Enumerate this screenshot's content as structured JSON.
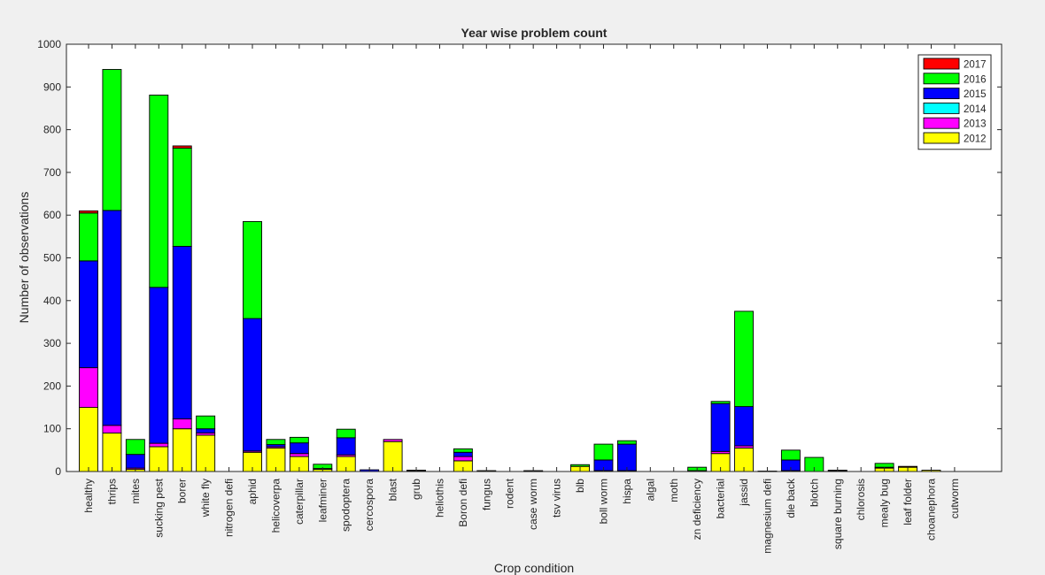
{
  "chart_data": {
    "type": "bar",
    "stacked": true,
    "title": "Year wise problem count",
    "xlabel": "Crop condition",
    "ylabel": "Number of observations",
    "ylim": [
      0,
      1000
    ],
    "yticks": [
      0,
      100,
      200,
      300,
      400,
      500,
      600,
      700,
      800,
      900,
      1000
    ],
    "legend_position": "top-right",
    "categories": [
      "healthy",
      "thrips",
      "mites",
      "sucking pest",
      "borer",
      "white fly",
      "nitrogen defi",
      "aphid",
      "helicoverpa",
      "caterpillar",
      "leafminer",
      "spodoptera",
      "cercospora",
      "blast",
      "grub",
      "heliothis",
      "Boron defi",
      "fungus",
      "rodent",
      "case worm",
      "tsv virus",
      "blb",
      "boll worm",
      "hispa",
      "algal",
      "moth",
      "zn deficiency",
      "bacterial",
      "jassid",
      "magnesium defi",
      "die back",
      "blotch",
      "square burning",
      "chlorosis",
      "mealy bug",
      "leaf folder",
      "choanephora",
      "cutworm"
    ],
    "series": [
      {
        "name": "2012",
        "color": "#ffff00",
        "values": [
          150,
          90,
          5,
          58,
          100,
          85,
          0,
          45,
          55,
          35,
          5,
          35,
          0,
          70,
          2,
          0,
          25,
          2,
          0,
          1,
          0,
          12,
          2,
          2,
          0,
          0,
          2,
          42,
          55,
          1,
          2,
          0,
          2,
          0,
          8,
          10,
          3,
          0
        ]
      },
      {
        "name": "2013",
        "color": "#ff00ff",
        "values": [
          93,
          18,
          3,
          8,
          23,
          5,
          0,
          3,
          3,
          7,
          0,
          4,
          0,
          5,
          0,
          0,
          10,
          0,
          0,
          0,
          0,
          0,
          0,
          0,
          0,
          0,
          0,
          5,
          5,
          0,
          0,
          0,
          0,
          0,
          0,
          0,
          0,
          0
        ]
      },
      {
        "name": "2014",
        "color": "#00ffff",
        "values": [
          0,
          0,
          0,
          0,
          0,
          0,
          0,
          0,
          0,
          0,
          0,
          0,
          0,
          0,
          0,
          0,
          0,
          0,
          0,
          0,
          0,
          0,
          0,
          0,
          0,
          0,
          0,
          0,
          0,
          0,
          0,
          0,
          0,
          0,
          0,
          0,
          0,
          0
        ]
      },
      {
        "name": "2015",
        "color": "#0000ff",
        "values": [
          250,
          503,
          32,
          365,
          404,
          10,
          0,
          310,
          5,
          25,
          2,
          40,
          4,
          0,
          0,
          0,
          10,
          0,
          0,
          0,
          0,
          0,
          25,
          62,
          0,
          0,
          0,
          112,
          92,
          0,
          25,
          0,
          0,
          0,
          2,
          0,
          0,
          0
        ]
      },
      {
        "name": "2016",
        "color": "#00ff00",
        "values": [
          112,
          330,
          35,
          450,
          230,
          30,
          0,
          227,
          12,
          13,
          10,
          20,
          0,
          0,
          1,
          0,
          8,
          0,
          0,
          1,
          0,
          4,
          37,
          8,
          0,
          0,
          8,
          5,
          223,
          0,
          23,
          33,
          1,
          0,
          9,
          0,
          0,
          0
        ]
      },
      {
        "name": "2017",
        "color": "#ff0000",
        "values": [
          5,
          0,
          0,
          0,
          5,
          0,
          0,
          0,
          0,
          0,
          0,
          0,
          0,
          0,
          0,
          0,
          0,
          0,
          0,
          0,
          0,
          0,
          0,
          0,
          0,
          0,
          0,
          0,
          0,
          0,
          0,
          0,
          0,
          0,
          0,
          2,
          0,
          0
        ]
      }
    ]
  }
}
